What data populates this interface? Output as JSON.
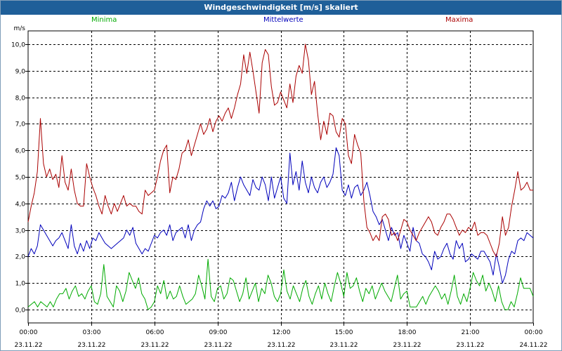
{
  "window": {
    "title": "Windgeschwindigkeit [m/s] skaliert"
  },
  "chart_data": {
    "type": "line",
    "title": "Windgeschwindigkeit [m/s] skaliert",
    "ylabel": "m/s",
    "ylim": [
      -0.5,
      10.5
    ],
    "y_ticks": [
      "0,0",
      "1,0",
      "2,0",
      "3,0",
      "4,0",
      "5,0",
      "6,0",
      "7,0",
      "8,0",
      "9,0",
      "10,0"
    ],
    "xlim": [
      0,
      24
    ],
    "x_ticks": [
      {
        "time": "00:00",
        "date": "23.11.22"
      },
      {
        "time": "03:00",
        "date": "23.11.22"
      },
      {
        "time": "06:00",
        "date": "23.11.22"
      },
      {
        "time": "09:00",
        "date": "23.11.22"
      },
      {
        "time": "12:00",
        "date": "23.11.22"
      },
      {
        "time": "15:00",
        "date": "23.11.22"
      },
      {
        "time": "18:00",
        "date": "23.11.22"
      },
      {
        "time": "21:00",
        "date": "23.11.22"
      },
      {
        "time": "00:00",
        "date": "24.11.22"
      }
    ],
    "grid": true,
    "legend_position": "top",
    "series": [
      {
        "name": "Minima",
        "color": "#00aa00",
        "values": [
          0.1,
          0.2,
          0.3,
          0.1,
          0.3,
          0.2,
          0.1,
          0.3,
          0.1,
          0.4,
          0.6,
          0.6,
          0.8,
          0.4,
          0.7,
          0.9,
          0.5,
          0.6,
          0.4,
          0.7,
          0.9,
          0.3,
          0.2,
          0.6,
          1.7,
          0.5,
          0.3,
          0.1,
          0.9,
          0.7,
          0.3,
          0.7,
          1.4,
          1.1,
          0.8,
          1.2,
          0.6,
          0.4,
          0.0,
          0.1,
          0.3,
          0.9,
          0.6,
          1.1,
          0.4,
          0.7,
          0.4,
          0.5,
          0.9,
          0.5,
          0.2,
          0.3,
          0.4,
          0.6,
          1.3,
          0.9,
          0.4,
          1.9,
          0.5,
          0.3,
          0.8,
          0.9,
          0.4,
          0.6,
          1.2,
          1.1,
          0.7,
          0.3,
          0.6,
          1.2,
          0.4,
          0.7,
          1.0,
          0.3,
          0.8,
          0.6,
          1.3,
          1.0,
          0.5,
          0.3,
          0.6,
          1.5,
          0.7,
          0.4,
          0.9,
          0.6,
          0.3,
          0.8,
          1.1,
          0.5,
          0.2,
          0.6,
          0.9,
          0.4,
          1.0,
          0.6,
          0.3,
          0.9,
          1.4,
          1.0,
          0.5,
          1.4,
          0.8,
          0.9,
          1.2,
          0.7,
          0.3,
          0.8,
          0.6,
          0.9,
          0.4,
          0.7,
          1.0,
          0.7,
          0.5,
          0.3,
          0.8,
          1.3,
          0.4,
          0.6,
          0.7,
          0.1,
          0.1,
          0.1,
          0.3,
          0.5,
          0.2,
          0.5,
          0.7,
          0.9,
          0.7,
          0.4,
          0.6,
          0.2,
          0.7,
          1.3,
          0.5,
          0.2,
          0.6,
          0.3,
          0.8,
          1.4,
          1.1,
          0.9,
          1.3,
          0.7,
          1.0,
          0.7,
          0.3,
          0.9,
          0.3,
          0.0,
          0.0,
          0.3,
          0.1,
          0.6,
          1.2,
          0.8,
          0.8,
          0.8,
          0.5
        ]
      },
      {
        "name": "Mittelwerte",
        "color": "#0000bb",
        "values": [
          2.0,
          2.3,
          2.1,
          2.4,
          3.2,
          3.0,
          2.8,
          2.6,
          2.4,
          2.6,
          2.7,
          2.9,
          2.6,
          2.3,
          3.2,
          2.4,
          2.1,
          2.5,
          2.2,
          2.6,
          2.3,
          2.7,
          2.6,
          2.9,
          2.7,
          2.5,
          2.4,
          2.3,
          2.4,
          2.5,
          2.6,
          2.7,
          3.0,
          2.8,
          3.1,
          2.5,
          2.3,
          2.1,
          2.3,
          2.2,
          2.5,
          2.8,
          2.7,
          2.9,
          3.0,
          2.8,
          3.2,
          2.6,
          2.9,
          3.0,
          3.1,
          2.7,
          3.2,
          2.6,
          3.0,
          3.2,
          3.3,
          3.8,
          4.1,
          3.9,
          4.1,
          3.8,
          3.9,
          4.3,
          4.2,
          4.4,
          4.8,
          4.1,
          4.6,
          5.0,
          4.7,
          4.5,
          4.3,
          4.9,
          4.6,
          4.5,
          5.0,
          4.7,
          4.1,
          5.0,
          4.2,
          4.6,
          5.0,
          4.2,
          4.0,
          5.9,
          4.7,
          5.2,
          4.5,
          5.6,
          4.8,
          4.4,
          5.0,
          4.6,
          4.4,
          4.8,
          5.0,
          4.6,
          4.8,
          5.1,
          6.1,
          5.8,
          4.5,
          4.3,
          4.7,
          4.2,
          4.6,
          4.7,
          4.3,
          4.5,
          4.8,
          4.3,
          3.7,
          3.5,
          3.2,
          3.4,
          3.0,
          2.6,
          3.1,
          2.8,
          2.9,
          2.3,
          2.8,
          2.5,
          2.2,
          3.1,
          2.6,
          2.5,
          2.1,
          2.0,
          1.8,
          1.5,
          2.2,
          1.9,
          2.0,
          2.3,
          2.5,
          2.1,
          1.9,
          2.6,
          2.3,
          2.5,
          1.8,
          1.9,
          2.1,
          2.0,
          1.9,
          2.2,
          2.2,
          2.0,
          1.8,
          1.3,
          2.1,
          1.6,
          1.0,
          1.3,
          1.9,
          2.2,
          2.1,
          2.6,
          2.7,
          2.6,
          2.9,
          2.8,
          2.7
        ]
      },
      {
        "name": "Maxima",
        "color": "#aa0000",
        "values": [
          3.3,
          3.9,
          4.4,
          5.2,
          7.2,
          5.5,
          5.0,
          5.3,
          4.9,
          5.1,
          4.6,
          5.8,
          4.8,
          4.5,
          5.3,
          4.5,
          4.0,
          3.9,
          3.9,
          5.5,
          5.0,
          4.6,
          4.3,
          3.9,
          3.6,
          4.3,
          3.9,
          3.6,
          4.0,
          3.7,
          4.0,
          4.3,
          3.9,
          4.0,
          3.9,
          3.9,
          3.7,
          3.6,
          4.5,
          4.3,
          4.4,
          4.5,
          5.0,
          5.6,
          6.0,
          6.2,
          4.4,
          5.0,
          4.9,
          5.3,
          5.9,
          6.0,
          6.4,
          5.8,
          6.2,
          6.6,
          7.0,
          6.6,
          6.8,
          7.2,
          6.7,
          7.1,
          7.3,
          7.1,
          7.4,
          7.6,
          7.2,
          7.6,
          8.1,
          8.5,
          9.6,
          8.9,
          9.7,
          9.0,
          8.2,
          7.4,
          9.3,
          9.8,
          9.6,
          8.4,
          7.7,
          7.8,
          8.2,
          7.9,
          7.6,
          8.5,
          7.8,
          8.8,
          9.2,
          8.9,
          10.0,
          9.4,
          8.1,
          8.6,
          7.4,
          6.4,
          7.1,
          6.6,
          7.4,
          7.3,
          6.7,
          6.5,
          7.2,
          7.0,
          5.8,
          5.5,
          6.6,
          6.2,
          5.9,
          4.1,
          3.1,
          2.9,
          2.6,
          2.8,
          2.6,
          3.5,
          3.6,
          3.4,
          2.8,
          2.9,
          2.6,
          3.0,
          3.4,
          3.3,
          3.0,
          2.8,
          2.6,
          2.9,
          3.1,
          3.3,
          3.5,
          3.3,
          2.9,
          2.8,
          3.1,
          3.3,
          3.6,
          3.6,
          3.4,
          3.1,
          2.8,
          3.0,
          2.9,
          3.1,
          3.0,
          3.3,
          2.8,
          2.9,
          2.9,
          2.8,
          2.5,
          2.2,
          2.0,
          2.5,
          3.5,
          2.8,
          3.1,
          3.9,
          4.5,
          5.2,
          4.5,
          4.6,
          4.8,
          4.5,
          4.5
        ]
      }
    ]
  }
}
